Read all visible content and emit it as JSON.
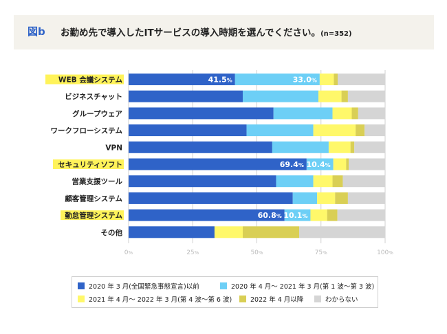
{
  "header": {
    "label": "図b",
    "title": "お勤め先で導入したITサービスの導入時期を選んでください。",
    "n": "(n=352)"
  },
  "colors": {
    "s1": "#2f63c8",
    "s2": "#6dcff6",
    "s3": "#fff86a",
    "s4": "#d9cf55",
    "s5": "#d5d5d5",
    "highlight": "#fff35a",
    "header_bg": "#f4f2ec"
  },
  "chart_data": {
    "type": "bar",
    "orientation": "horizontal",
    "stacked": true,
    "categories": [
      "WEB 会議システム",
      "ビジネスチャット",
      "グループウェア",
      "ワークフローシステム",
      "VPN",
      "セキュリティソフト",
      "営業支援ツール",
      "顧客管理システム",
      "勤怠管理システム",
      "その他"
    ],
    "highlighted_categories": [
      "WEB 会議システム",
      "セキュリティソフト",
      "勤怠管理システム"
    ],
    "series": [
      {
        "name": "2020 年 3 月(全国緊急事態宣言)以前",
        "values": [
          41.5,
          44.5,
          56.5,
          46.0,
          56.0,
          69.4,
          57.5,
          64.0,
          60.8,
          33.5
        ]
      },
      {
        "name": "2020 年 4 月～ 2021 年 3 月(第 1 波～第 3 波)",
        "values": [
          33.0,
          29.5,
          23.0,
          26.0,
          22.0,
          10.4,
          14.5,
          9.5,
          10.1,
          0
        ]
      },
      {
        "name": "2021 年 4 月～ 2022 年 3 月(第 4 波～第 6 波)",
        "values": [
          5.5,
          9.0,
          7.5,
          16.5,
          8.5,
          5.0,
          7.5,
          7.0,
          6.5,
          11.0
        ]
      },
      {
        "name": "2022 年 4 月以降",
        "values": [
          1.5,
          2.5,
          2.5,
          3.5,
          1.5,
          1.0,
          4.0,
          5.0,
          4.0,
          22.0
        ]
      },
      {
        "name": "わからない",
        "values": [
          18.5,
          14.5,
          10.5,
          8.0,
          12.0,
          14.2,
          16.5,
          14.5,
          18.6,
          33.5
        ]
      }
    ],
    "data_labels": [
      {
        "row": 0,
        "series": 0,
        "text": "41.5",
        "unit": "%"
      },
      {
        "row": 0,
        "series": 1,
        "text": "33.0",
        "unit": "%"
      },
      {
        "row": 5,
        "series": 0,
        "text": "69.4",
        "unit": "%"
      },
      {
        "row": 5,
        "series": 1,
        "text": "10.4",
        "unit": "%"
      },
      {
        "row": 8,
        "series": 0,
        "text": "60.8",
        "unit": "%"
      },
      {
        "row": 8,
        "series": 1,
        "text": "10.1",
        "unit": "%"
      }
    ],
    "x_ticks": [
      {
        "v": 0,
        "text": "0",
        "unit": "%"
      },
      {
        "v": 25,
        "text": "25",
        "unit": "%"
      },
      {
        "v": 50,
        "text": "50",
        "unit": "%"
      },
      {
        "v": 75,
        "text": "75",
        "unit": "%"
      },
      {
        "v": 100,
        "text": "100",
        "unit": "%"
      }
    ],
    "xlim": [
      0,
      100
    ],
    "grid": true,
    "legend_position": "bottom"
  }
}
